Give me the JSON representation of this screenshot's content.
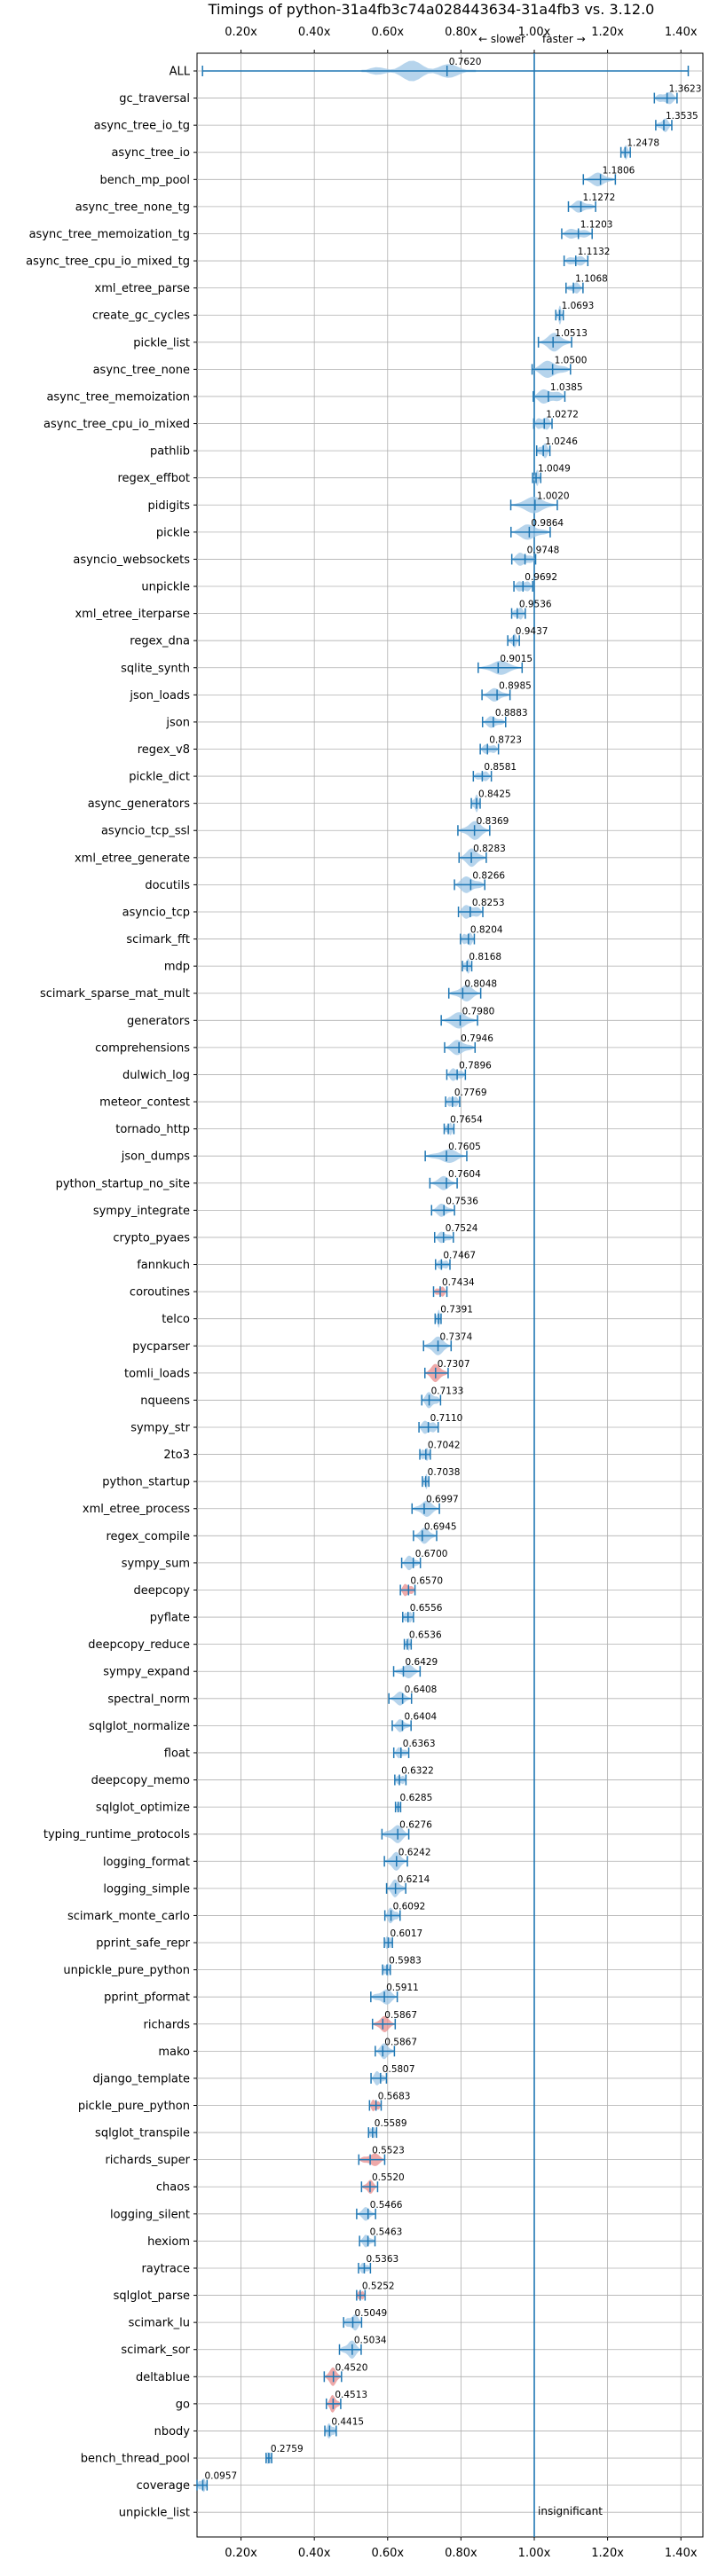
{
  "chart_data": {
    "type": "violin",
    "title": "Timings of python-31a4fb3c74a028443634-31a4fb3 vs. 3.12.0",
    "direction_left": "← slower",
    "direction_right": "faster →",
    "xlim": [
      0.08,
      1.46
    ],
    "x_ticks": [
      0.2,
      0.4,
      0.6,
      0.8,
      1.0,
      1.2,
      1.4
    ],
    "x_tick_labels": [
      "0.20x",
      "0.40x",
      "0.60x",
      "0.80x",
      "1.00x",
      "1.20x",
      "1.40x"
    ],
    "reference_line": 1.0,
    "grid": true,
    "annotation": "insignificant",
    "benchmarks": [
      {
        "name": "ALL",
        "value": 0.762,
        "label": "0.7620"
      },
      {
        "name": "gc_traversal",
        "value": 1.3623,
        "label": "1.3623"
      },
      {
        "name": "async_tree_io_tg",
        "value": 1.3535,
        "label": "1.3535"
      },
      {
        "name": "async_tree_io",
        "value": 1.2478,
        "label": "1.2478"
      },
      {
        "name": "bench_mp_pool",
        "value": 1.1806,
        "label": "1.1806"
      },
      {
        "name": "async_tree_none_tg",
        "value": 1.1272,
        "label": "1.1272"
      },
      {
        "name": "async_tree_memoization_tg",
        "value": 1.1203,
        "label": "1.1203"
      },
      {
        "name": "async_tree_cpu_io_mixed_tg",
        "value": 1.1132,
        "label": "1.1132"
      },
      {
        "name": "xml_etree_parse",
        "value": 1.1068,
        "label": "1.1068"
      },
      {
        "name": "create_gc_cycles",
        "value": 1.0693,
        "label": "1.0693"
      },
      {
        "name": "pickle_list",
        "value": 1.0513,
        "label": "1.0513"
      },
      {
        "name": "async_tree_none",
        "value": 1.05,
        "label": "1.0500"
      },
      {
        "name": "async_tree_memoization",
        "value": 1.0385,
        "label": "1.0385"
      },
      {
        "name": "async_tree_cpu_io_mixed",
        "value": 1.0272,
        "label": "1.0272"
      },
      {
        "name": "pathlib",
        "value": 1.0246,
        "label": "1.0246"
      },
      {
        "name": "regex_effbot",
        "value": 1.0049,
        "label": "1.0049"
      },
      {
        "name": "pidigits",
        "value": 1.002,
        "label": "1.0020"
      },
      {
        "name": "pickle",
        "value": 0.9864,
        "label": "0.9864"
      },
      {
        "name": "asyncio_websockets",
        "value": 0.9748,
        "label": "0.9748"
      },
      {
        "name": "unpickle",
        "value": 0.9692,
        "label": "0.9692"
      },
      {
        "name": "xml_etree_iterparse",
        "value": 0.9536,
        "label": "0.9536"
      },
      {
        "name": "regex_dna",
        "value": 0.9437,
        "label": "0.9437"
      },
      {
        "name": "sqlite_synth",
        "value": 0.9015,
        "label": "0.9015"
      },
      {
        "name": "json_loads",
        "value": 0.8985,
        "label": "0.8985"
      },
      {
        "name": "json",
        "value": 0.8883,
        "label": "0.8883"
      },
      {
        "name": "regex_v8",
        "value": 0.8723,
        "label": "0.8723"
      },
      {
        "name": "pickle_dict",
        "value": 0.8581,
        "label": "0.8581"
      },
      {
        "name": "async_generators",
        "value": 0.8425,
        "label": "0.8425"
      },
      {
        "name": "asyncio_tcp_ssl",
        "value": 0.8369,
        "label": "0.8369"
      },
      {
        "name": "xml_etree_generate",
        "value": 0.8283,
        "label": "0.8283"
      },
      {
        "name": "docutils",
        "value": 0.8266,
        "label": "0.8266"
      },
      {
        "name": "asyncio_tcp",
        "value": 0.8253,
        "label": "0.8253"
      },
      {
        "name": "scimark_fft",
        "value": 0.8204,
        "label": "0.8204"
      },
      {
        "name": "mdp",
        "value": 0.8168,
        "label": "0.8168"
      },
      {
        "name": "scimark_sparse_mat_mult",
        "value": 0.8048,
        "label": "0.8048"
      },
      {
        "name": "generators",
        "value": 0.798,
        "label": "0.7980"
      },
      {
        "name": "comprehensions",
        "value": 0.7946,
        "label": "0.7946"
      },
      {
        "name": "dulwich_log",
        "value": 0.7896,
        "label": "0.7896"
      },
      {
        "name": "meteor_contest",
        "value": 0.7769,
        "label": "0.7769"
      },
      {
        "name": "tornado_http",
        "value": 0.7654,
        "label": "0.7654"
      },
      {
        "name": "json_dumps",
        "value": 0.7605,
        "label": "0.7605"
      },
      {
        "name": "python_startup_no_site",
        "value": 0.7604,
        "label": "0.7604"
      },
      {
        "name": "sympy_integrate",
        "value": 0.7536,
        "label": "0.7536"
      },
      {
        "name": "crypto_pyaes",
        "value": 0.7524,
        "label": "0.7524"
      },
      {
        "name": "fannkuch",
        "value": 0.7467,
        "label": "0.7467"
      },
      {
        "name": "coroutines",
        "value": 0.7434,
        "label": "0.7434"
      },
      {
        "name": "telco",
        "value": 0.7391,
        "label": "0.7391"
      },
      {
        "name": "pycparser",
        "value": 0.7374,
        "label": "0.7374"
      },
      {
        "name": "tomli_loads",
        "value": 0.7307,
        "label": "0.7307"
      },
      {
        "name": "nqueens",
        "value": 0.7133,
        "label": "0.7133"
      },
      {
        "name": "sympy_str",
        "value": 0.711,
        "label": "0.7110"
      },
      {
        "name": "2to3",
        "value": 0.7042,
        "label": "0.7042"
      },
      {
        "name": "python_startup",
        "value": 0.7038,
        "label": "0.7038"
      },
      {
        "name": "xml_etree_process",
        "value": 0.6997,
        "label": "0.6997"
      },
      {
        "name": "regex_compile",
        "value": 0.6945,
        "label": "0.6945"
      },
      {
        "name": "sympy_sum",
        "value": 0.67,
        "label": "0.6700"
      },
      {
        "name": "deepcopy",
        "value": 0.657,
        "label": "0.6570"
      },
      {
        "name": "pyflate",
        "value": 0.6556,
        "label": "0.6556"
      },
      {
        "name": "deepcopy_reduce",
        "value": 0.6536,
        "label": "0.6536"
      },
      {
        "name": "sympy_expand",
        "value": 0.6429,
        "label": "0.6429"
      },
      {
        "name": "spectral_norm",
        "value": 0.6408,
        "label": "0.6408"
      },
      {
        "name": "sqlglot_normalize",
        "value": 0.6404,
        "label": "0.6404"
      },
      {
        "name": "float",
        "value": 0.6363,
        "label": "0.6363"
      },
      {
        "name": "deepcopy_memo",
        "value": 0.6322,
        "label": "0.6322"
      },
      {
        "name": "sqlglot_optimize",
        "value": 0.6285,
        "label": "0.6285"
      },
      {
        "name": "typing_runtime_protocols",
        "value": 0.6276,
        "label": "0.6276"
      },
      {
        "name": "logging_format",
        "value": 0.6242,
        "label": "0.6242"
      },
      {
        "name": "logging_simple",
        "value": 0.6214,
        "label": "0.6214"
      },
      {
        "name": "scimark_monte_carlo",
        "value": 0.6092,
        "label": "0.6092"
      },
      {
        "name": "pprint_safe_repr",
        "value": 0.6017,
        "label": "0.6017"
      },
      {
        "name": "unpickle_pure_python",
        "value": 0.5983,
        "label": "0.5983"
      },
      {
        "name": "pprint_pformat",
        "value": 0.5911,
        "label": "0.5911"
      },
      {
        "name": "richards",
        "value": 0.5867,
        "label": "0.5867"
      },
      {
        "name": "mako",
        "value": 0.5867,
        "label": "0.5867"
      },
      {
        "name": "django_template",
        "value": 0.5807,
        "label": "0.5807"
      },
      {
        "name": "pickle_pure_python",
        "value": 0.5683,
        "label": "0.5683"
      },
      {
        "name": "sqlglot_transpile",
        "value": 0.5589,
        "label": "0.5589"
      },
      {
        "name": "richards_super",
        "value": 0.5523,
        "label": "0.5523"
      },
      {
        "name": "chaos",
        "value": 0.552,
        "label": "0.5520"
      },
      {
        "name": "logging_silent",
        "value": 0.5466,
        "label": "0.5466"
      },
      {
        "name": "hexiom",
        "value": 0.5463,
        "label": "0.5463"
      },
      {
        "name": "raytrace",
        "value": 0.5363,
        "label": "0.5363"
      },
      {
        "name": "sqlglot_parse",
        "value": 0.5252,
        "label": "0.5252"
      },
      {
        "name": "scimark_lu",
        "value": 0.5049,
        "label": "0.5049"
      },
      {
        "name": "scimark_sor",
        "value": 0.5034,
        "label": "0.5034"
      },
      {
        "name": "deltablue",
        "value": 0.452,
        "label": "0.4520"
      },
      {
        "name": "go",
        "value": 0.4513,
        "label": "0.4513"
      },
      {
        "name": "nbody",
        "value": 0.4415,
        "label": "0.4415"
      },
      {
        "name": "bench_thread_pool",
        "value": 0.2759,
        "label": "0.2759"
      },
      {
        "name": "coverage",
        "value": 0.0957,
        "label": "0.0957"
      },
      {
        "name": "unpickle_list",
        "value": null,
        "label": ""
      }
    ]
  }
}
